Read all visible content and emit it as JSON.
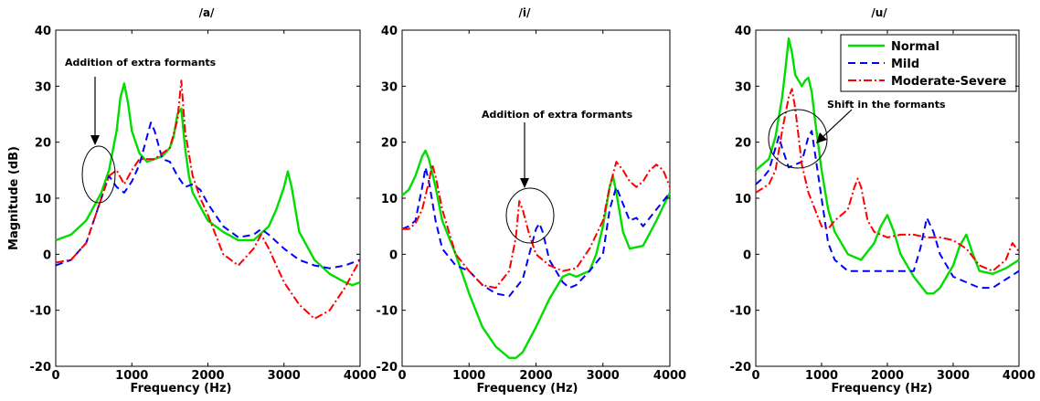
{
  "chart_data": [
    {
      "type": "line",
      "title": "/a/",
      "xlabel": "Frequency (Hz)",
      "ylabel": "Magnitude (dB)",
      "xlim": [
        0,
        4000
      ],
      "ylim": [
        -20,
        40
      ],
      "xticks": [
        0,
        1000,
        2000,
        3000,
        4000
      ],
      "yticks": [
        -20,
        -10,
        0,
        10,
        20,
        30,
        40
      ],
      "grid": false,
      "legend": null,
      "series": [
        {
          "name": "Normal",
          "color": "#00dd00",
          "style": "solid",
          "x": [
            0,
            200,
            400,
            600,
            700,
            800,
            850,
            900,
            950,
            1000,
            1100,
            1200,
            1300,
            1400,
            1500,
            1550,
            1600,
            1650,
            1700,
            1750,
            1800,
            2000,
            2200,
            2400,
            2600,
            2800,
            2900,
            3000,
            3050,
            3100,
            3200,
            3400,
            3600,
            3800,
            3900,
            4000
          ],
          "y": [
            2.5,
            3.5,
            6,
            11,
            15,
            22,
            28,
            30.5,
            27,
            22,
            18,
            16.5,
            17,
            17.5,
            19,
            21,
            25,
            26,
            19,
            14,
            11,
            6,
            4,
            2.5,
            2.5,
            5,
            8,
            12,
            14.8,
            12,
            4,
            -1,
            -3.5,
            -5,
            -5.5,
            -5
          ]
        },
        {
          "name": "Mild",
          "color": "#0000ff",
          "style": "dashed",
          "x": [
            0,
            200,
            400,
            600,
            700,
            800,
            900,
            1000,
            1100,
            1200,
            1250,
            1300,
            1400,
            1500,
            1600,
            1700,
            1800,
            1900,
            2000,
            2200,
            2400,
            2600,
            2700,
            2800,
            3000,
            3200,
            3400,
            3600,
            3800,
            4000
          ],
          "y": [
            -2,
            -1,
            2,
            10,
            14,
            12,
            11,
            13,
            16,
            21,
            23.5,
            22,
            17,
            16.5,
            14,
            12,
            12.5,
            11.5,
            9,
            5,
            3,
            3.5,
            4.5,
            3.5,
            1,
            -1,
            -2,
            -2.5,
            -2,
            -1
          ]
        },
        {
          "name": "Moderate-Severe",
          "color": "#ff0000",
          "style": "dashdot",
          "x": [
            0,
            200,
            400,
            600,
            700,
            800,
            900,
            1000,
            1100,
            1200,
            1300,
            1400,
            1500,
            1600,
            1650,
            1700,
            1800,
            1900,
            2000,
            2200,
            2400,
            2600,
            2700,
            2800,
            3000,
            3200,
            3400,
            3600,
            3800,
            4000
          ],
          "y": [
            -1.5,
            -1,
            2,
            10,
            14,
            15,
            12.5,
            15,
            17,
            17,
            17,
            18,
            19,
            24,
            31,
            22,
            14,
            10,
            7,
            0,
            -2,
            1,
            3.5,
            1,
            -5,
            -9,
            -11.5,
            -10,
            -6,
            -1
          ]
        }
      ],
      "annotations": [
        {
          "text": "Addition of extra formants"
        }
      ]
    },
    {
      "type": "line",
      "title": "/i/",
      "xlabel": "Frequency (Hz)",
      "ylabel": "",
      "xlim": [
        0,
        4000
      ],
      "ylim": [
        -20,
        40
      ],
      "xticks": [
        0,
        1000,
        2000,
        3000,
        4000
      ],
      "yticks": [
        -20,
        -10,
        0,
        10,
        20,
        30,
        40
      ],
      "grid": false,
      "legend": null,
      "series": [
        {
          "name": "Normal",
          "color": "#00dd00",
          "style": "solid",
          "x": [
            0,
            100,
            200,
            300,
            350,
            400,
            500,
            600,
            800,
            1000,
            1200,
            1400,
            1600,
            1700,
            1800,
            2000,
            2200,
            2400,
            2500,
            2600,
            2800,
            2900,
            3000,
            3100,
            3150,
            3200,
            3300,
            3400,
            3600,
            3800,
            4000
          ],
          "y": [
            10.5,
            11.5,
            14,
            17.5,
            18.5,
            17,
            12,
            6,
            0,
            -7,
            -13,
            -16.5,
            -18.5,
            -18.5,
            -17.5,
            -13,
            -8,
            -4,
            -3.5,
            -4,
            -3,
            0,
            5,
            12,
            14,
            11,
            4,
            1,
            1.5,
            6,
            11
          ]
        },
        {
          "name": "Mild",
          "color": "#0000ff",
          "style": "dashed",
          "x": [
            0,
            100,
            200,
            300,
            350,
            400,
            500,
            600,
            800,
            1000,
            1200,
            1400,
            1600,
            1800,
            1900,
            2000,
            2050,
            2100,
            2200,
            2400,
            2500,
            2600,
            2800,
            3000,
            3100,
            3200,
            3300,
            3400,
            3500,
            3600,
            3800,
            4000
          ],
          "y": [
            4.5,
            5,
            6,
            12,
            15.5,
            13,
            6,
            1,
            -2,
            -3,
            -5.5,
            -7,
            -7.5,
            -4.5,
            0,
            4.5,
            5.5,
            4,
            -1,
            -5,
            -6,
            -5.5,
            -3,
            0,
            8,
            12,
            9,
            6,
            6.5,
            5,
            8,
            11
          ]
        },
        {
          "name": "Moderate-Severe",
          "color": "#ff0000",
          "style": "dashdot",
          "x": [
            0,
            100,
            200,
            300,
            400,
            450,
            500,
            600,
            800,
            1000,
            1200,
            1400,
            1600,
            1700,
            1750,
            1800,
            1900,
            2000,
            2200,
            2400,
            2600,
            2800,
            3000,
            3100,
            3200,
            3300,
            3400,
            3500,
            3600,
            3700,
            3800,
            3900,
            4000
          ],
          "y": [
            4.5,
            4.5,
            5.5,
            8,
            13,
            16,
            14,
            8,
            0,
            -3,
            -5.5,
            -6,
            -3,
            3,
            9.5,
            8,
            3.5,
            0,
            -2,
            -3,
            -2.5,
            1,
            6,
            12,
            16.5,
            15,
            13,
            12,
            13,
            15,
            16,
            15,
            12
          ]
        }
      ],
      "annotations": [
        {
          "text": "Addition of extra formants"
        }
      ]
    },
    {
      "type": "line",
      "title": "/u/",
      "xlabel": "Frequency (Hz)",
      "ylabel": "",
      "xlim": [
        0,
        4000
      ],
      "ylim": [
        -20,
        40
      ],
      "xticks": [
        0,
        1000,
        2000,
        3000,
        4000
      ],
      "yticks": [
        -20,
        -10,
        0,
        10,
        20,
        30,
        40
      ],
      "grid": false,
      "legend": "top-right",
      "series": [
        {
          "name": "Normal",
          "color": "#00dd00",
          "style": "solid",
          "x": [
            0,
            200,
            300,
            400,
            450,
            500,
            550,
            600,
            650,
            700,
            750,
            800,
            850,
            900,
            1000,
            1100,
            1200,
            1400,
            1600,
            1800,
            1900,
            2000,
            2100,
            2200,
            2400,
            2600,
            2700,
            2800,
            3000,
            3100,
            3200,
            3300,
            3400,
            3600,
            3800,
            4000
          ],
          "y": [
            15,
            17,
            21,
            28,
            33,
            38.5,
            36,
            32,
            31,
            30,
            31,
            31.5,
            29,
            24,
            15,
            8,
            4,
            0,
            -1,
            2,
            5,
            7,
            4,
            0,
            -4,
            -7,
            -7,
            -6,
            -2,
            1.5,
            3.5,
            0,
            -3,
            -3.5,
            -2.5,
            -1
          ]
        },
        {
          "name": "Mild",
          "color": "#0000ff",
          "style": "dashed",
          "x": [
            0,
            100,
            200,
            300,
            350,
            400,
            500,
            600,
            700,
            800,
            850,
            900,
            1000,
            1100,
            1200,
            1400,
            1600,
            1800,
            2000,
            2200,
            2400,
            2500,
            2600,
            2700,
            2800,
            3000,
            3200,
            3400,
            3600,
            3800,
            4000
          ],
          "y": [
            12.5,
            13.5,
            15,
            19,
            21,
            19,
            15.5,
            16,
            16.5,
            21,
            22,
            18,
            10,
            2,
            -1,
            -3,
            -3,
            -3,
            -3,
            -3,
            -3,
            1,
            6.5,
            4,
            0,
            -4,
            -5,
            -6,
            -6,
            -4.5,
            -3
          ]
        },
        {
          "name": "Moderate-Severe",
          "color": "#ff0000",
          "style": "dashdot",
          "x": [
            0,
            200,
            300,
            400,
            500,
            550,
            600,
            700,
            800,
            900,
            1000,
            1100,
            1200,
            1300,
            1400,
            1500,
            1550,
            1600,
            1700,
            1800,
            2000,
            2200,
            2400,
            2600,
            2800,
            3000,
            3200,
            3400,
            3600,
            3800,
            3900,
            4000
          ],
          "y": [
            11,
            12.5,
            15,
            22,
            28,
            29.5,
            26,
            16,
            11,
            8,
            5,
            4.5,
            6,
            7,
            8,
            12,
            13.5,
            12,
            6,
            4,
            3,
            3.5,
            3.5,
            3,
            3,
            2.5,
            1,
            -2,
            -3,
            -1,
            2,
            0.5
          ]
        }
      ],
      "annotations": [
        {
          "text": "Shift in the formants"
        }
      ]
    }
  ]
}
